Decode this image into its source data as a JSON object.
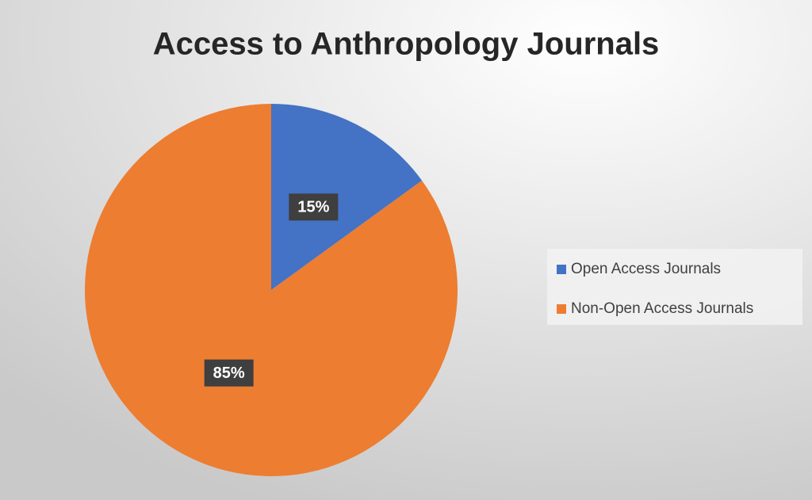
{
  "chart_data": {
    "type": "pie",
    "title": "Access to Anthropology Journals",
    "categories": [
      "Open Access Journals",
      "Non-Open Access Journals"
    ],
    "values": [
      15,
      85
    ],
    "value_labels": [
      "15%",
      "85%"
    ],
    "colors": [
      "#4472c4",
      "#ed7d31"
    ],
    "legend": "right"
  }
}
